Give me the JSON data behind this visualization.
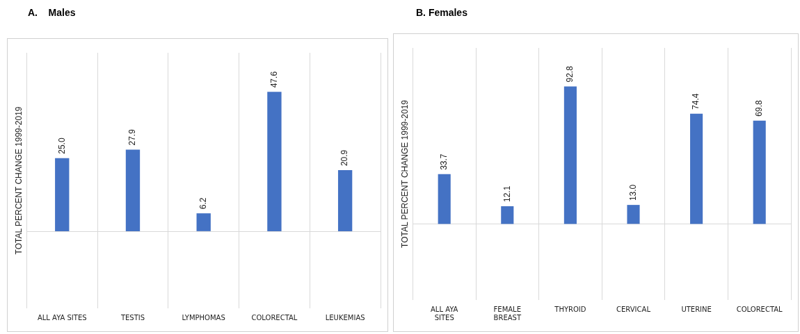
{
  "chart_data": [
    {
      "type": "bar",
      "title": "A.    Males",
      "ylabel": "TOTAL PERCENT CHANGE 1999-2019",
      "categories": [
        "ALL AYA SITES",
        "TESTIS",
        "LYMPHOMAS",
        "COLORECTAL",
        "LEUKEMIAS"
      ],
      "values": [
        25.0,
        27.9,
        6.2,
        47.6,
        20.9
      ],
      "value_labels": [
        "25.0",
        "27.9",
        "6.2",
        "47.6",
        "20.9"
      ],
      "color": "#4472c4",
      "grid": "x",
      "legend": false,
      "tick_labels": "x"
    },
    {
      "type": "bar",
      "title": "B. Females",
      "ylabel": "TOTAL PERCENT CHANGE 1999-2019",
      "categories": [
        "ALL AYA SITES",
        "FEMALE BREAST",
        "THYROID",
        "CERVICAL",
        "UTERINE",
        "COLORECTAL"
      ],
      "values": [
        33.7,
        12.1,
        92.8,
        13.0,
        74.4,
        69.8
      ],
      "value_labels": [
        "33.7",
        "12.1",
        "92.8",
        "13.0",
        "74.4",
        "69.8"
      ],
      "color": "#4472c4",
      "grid": "x",
      "legend": false,
      "tick_labels": "x"
    }
  ]
}
